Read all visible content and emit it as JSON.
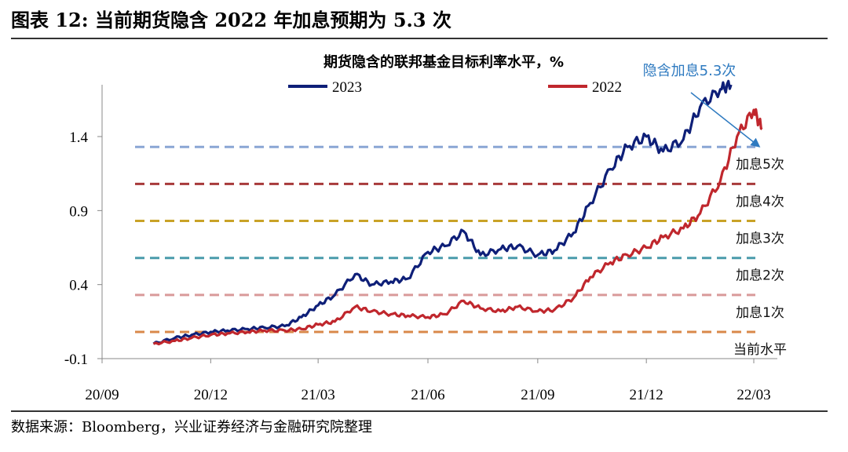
{
  "figure": {
    "title": "图表 12: 当前期货隐含 2022 年加息预期为 5.3 次",
    "source": "数据来源：Bloomberg，兴业证券经济与金融研究院整理"
  },
  "chart_data": {
    "type": "line",
    "title": "期货隐含的联邦基金目标利率水平，%",
    "xlabel": "",
    "ylabel": "",
    "x_ticks": [
      "20/09",
      "20/12",
      "21/03",
      "21/06",
      "21/09",
      "21/12",
      "22/03"
    ],
    "y_ticks": [
      "-0.1",
      "0.4",
      "0.9",
      "1.4"
    ],
    "ylim": [
      -0.1,
      1.75
    ],
    "grid": false,
    "legend_position": "top",
    "colors": {
      "2023": "#0e1f78",
      "2022": "#c0272d"
    },
    "series": [
      {
        "name": "2023",
        "color": "#0e1f78",
        "x": [
          "2020-10-14",
          "2020-11-01",
          "2020-11-15",
          "2020-12-01",
          "2020-12-15",
          "2021-01-01",
          "2021-01-15",
          "2021-02-01",
          "2021-02-15",
          "2021-03-01",
          "2021-03-15",
          "2021-04-01",
          "2021-04-15",
          "2021-05-01",
          "2021-05-15",
          "2021-06-01",
          "2021-06-15",
          "2021-07-01",
          "2021-07-15",
          "2021-08-01",
          "2021-08-15",
          "2021-09-01",
          "2021-09-15",
          "2021-10-01",
          "2021-10-15",
          "2021-11-01",
          "2021-11-15",
          "2021-12-01",
          "2021-12-15",
          "2022-01-01",
          "2022-01-15",
          "2022-02-01",
          "2022-02-10"
        ],
        "y": [
          0.0,
          0.04,
          0.06,
          0.08,
          0.09,
          0.1,
          0.11,
          0.12,
          0.18,
          0.26,
          0.33,
          0.47,
          0.4,
          0.42,
          0.44,
          0.62,
          0.66,
          0.76,
          0.6,
          0.64,
          0.66,
          0.6,
          0.63,
          0.75,
          0.95,
          1.18,
          1.33,
          1.4,
          1.3,
          1.38,
          1.6,
          1.72,
          1.75
        ]
      },
      {
        "name": "2022",
        "color": "#c0272d",
        "x": [
          "2020-10-14",
          "2020-11-01",
          "2020-11-15",
          "2020-12-01",
          "2020-12-15",
          "2021-01-01",
          "2021-01-15",
          "2021-02-01",
          "2021-02-15",
          "2021-03-01",
          "2021-03-15",
          "2021-04-01",
          "2021-04-15",
          "2021-05-01",
          "2021-05-15",
          "2021-06-01",
          "2021-06-15",
          "2021-07-01",
          "2021-07-15",
          "2021-08-01",
          "2021-08-15",
          "2021-09-01",
          "2021-09-15",
          "2021-10-01",
          "2021-10-15",
          "2021-11-01",
          "2021-11-15",
          "2021-12-01",
          "2021-12-15",
          "2022-01-01",
          "2022-01-15",
          "2022-02-01",
          "2022-02-15",
          "2022-03-01",
          "2022-03-08"
        ],
        "y": [
          0.0,
          0.02,
          0.04,
          0.06,
          0.07,
          0.08,
          0.09,
          0.09,
          0.1,
          0.13,
          0.15,
          0.25,
          0.22,
          0.2,
          0.19,
          0.18,
          0.2,
          0.29,
          0.24,
          0.22,
          0.25,
          0.22,
          0.23,
          0.31,
          0.45,
          0.55,
          0.6,
          0.65,
          0.72,
          0.78,
          0.88,
          1.1,
          1.4,
          1.58,
          1.45
        ]
      }
    ],
    "reference_lines": [
      {
        "label": "当前水平",
        "y": 0.08,
        "color": "#d9884a"
      },
      {
        "label": "加息1次",
        "y": 0.33,
        "color": "#d99a9a"
      },
      {
        "label": "加息2次",
        "y": 0.58,
        "color": "#4a9bab"
      },
      {
        "label": "加息3次",
        "y": 0.83,
        "color": "#c9a227"
      },
      {
        "label": "加息4次",
        "y": 1.08,
        "color": "#a8393a"
      },
      {
        "label": "加息5次",
        "y": 1.33,
        "color": "#8aa6d4"
      }
    ],
    "annotation": {
      "text": "隐含加息5.3次",
      "color": "#2e7ac0"
    }
  }
}
